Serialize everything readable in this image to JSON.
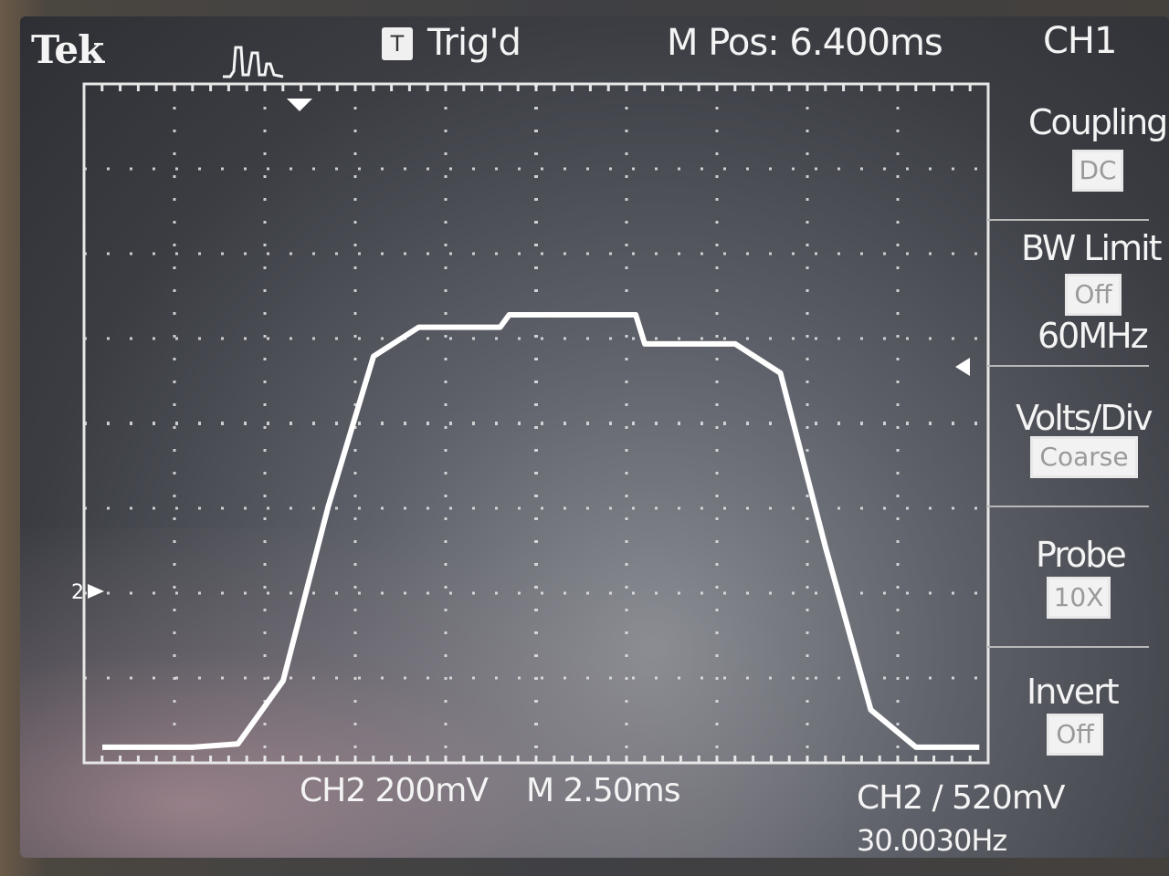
{
  "header": {
    "brand": "Tek",
    "trigger_badge": "T",
    "trigger_status": "Trig'd",
    "horizontal_position": "M Pos: 6.400ms"
  },
  "side_menu": {
    "title": "CH1",
    "items": [
      {
        "label": "Coupling",
        "value": "DC"
      },
      {
        "label": "BW Limit",
        "value": "Off",
        "sub_value": "60MHz"
      },
      {
        "label": "Volts/Div",
        "value": "Coarse"
      },
      {
        "label": "Probe",
        "value": "10X"
      },
      {
        "label": "Invert",
        "value": "Off"
      }
    ]
  },
  "footer": {
    "channel_scale": "CH2  200mV",
    "timebase": "M 2.50ms",
    "trigger_info": "CH2 ∕ 520mV",
    "frequency": "30.0030Hz"
  },
  "graticule": {
    "divisions_x": 10,
    "divisions_y": 8
  },
  "waveform": {
    "channel": "2",
    "color": "#ffffff",
    "samples": [
      [
        0.0,
        0.1
      ],
      [
        0.5,
        0.1
      ],
      [
        1.0,
        0.1
      ],
      [
        1.5,
        0.14
      ],
      [
        2.0,
        0.9
      ],
      [
        2.5,
        3.0
      ],
      [
        3.0,
        4.8
      ],
      [
        3.5,
        5.15
      ],
      [
        4.0,
        5.15
      ],
      [
        4.4,
        5.15
      ],
      [
        4.5,
        5.3
      ],
      [
        5.0,
        5.3
      ],
      [
        5.5,
        5.3
      ],
      [
        5.9,
        5.3
      ],
      [
        6.0,
        4.95
      ],
      [
        6.5,
        4.95
      ],
      [
        7.0,
        4.95
      ],
      [
        7.5,
        4.6
      ],
      [
        8.0,
        2.5
      ],
      [
        8.5,
        0.55
      ],
      [
        9.0,
        0.1
      ],
      [
        9.7,
        0.1
      ]
    ]
  },
  "colors": {
    "trace": "#ffffff",
    "graticule": "#e6e6e6",
    "text": "#f4f4f4"
  }
}
